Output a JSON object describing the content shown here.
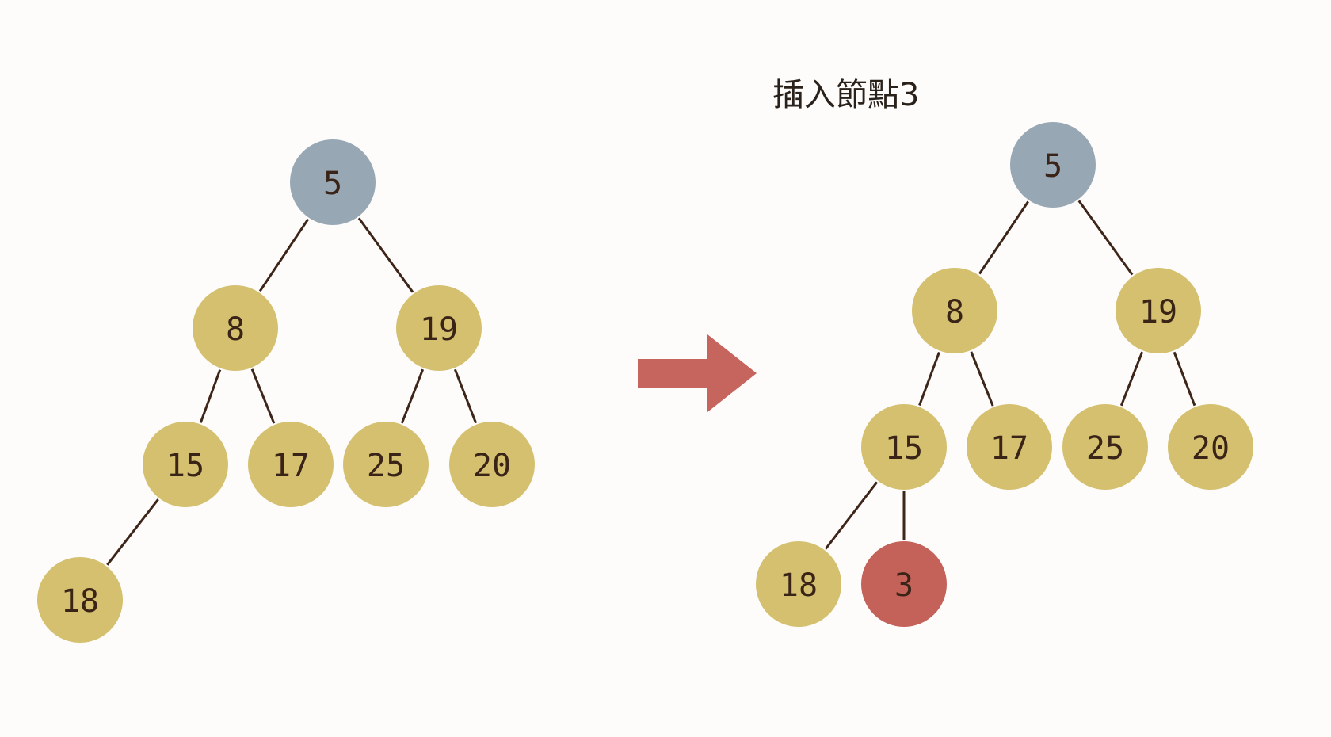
{
  "colors": {
    "node_default": "#d4c06f",
    "node_root": "#98a7b4",
    "node_inserted": "#c4625a",
    "edge": "#3d2519",
    "label": "#3a2418",
    "arrow": "#c5655d"
  },
  "before": {
    "nodes": [
      {
        "id": "b5",
        "label": "5",
        "role": "root"
      },
      {
        "id": "b8",
        "label": "8",
        "role": "default"
      },
      {
        "id": "b19",
        "label": "19",
        "role": "default"
      },
      {
        "id": "b15",
        "label": "15",
        "role": "default"
      },
      {
        "id": "b17",
        "label": "17",
        "role": "default"
      },
      {
        "id": "b25",
        "label": "25",
        "role": "default"
      },
      {
        "id": "b20",
        "label": "20",
        "role": "default"
      },
      {
        "id": "b18",
        "label": "18",
        "role": "default"
      }
    ],
    "edges": [
      [
        "b5",
        "b8"
      ],
      [
        "b5",
        "b19"
      ],
      [
        "b8",
        "b15"
      ],
      [
        "b8",
        "b17"
      ],
      [
        "b19",
        "b25"
      ],
      [
        "b19",
        "b20"
      ],
      [
        "b15",
        "b18"
      ]
    ]
  },
  "after": {
    "caption": "插入節點3",
    "nodes": [
      {
        "id": "a5",
        "label": "5",
        "role": "root"
      },
      {
        "id": "a8",
        "label": "8",
        "role": "default"
      },
      {
        "id": "a19",
        "label": "19",
        "role": "default"
      },
      {
        "id": "a15",
        "label": "15",
        "role": "default"
      },
      {
        "id": "a17",
        "label": "17",
        "role": "default"
      },
      {
        "id": "a25",
        "label": "25",
        "role": "default"
      },
      {
        "id": "a20",
        "label": "20",
        "role": "default"
      },
      {
        "id": "a18",
        "label": "18",
        "role": "default"
      },
      {
        "id": "a3",
        "label": "3",
        "role": "inserted"
      }
    ],
    "edges": [
      [
        "a5",
        "a8"
      ],
      [
        "a5",
        "a19"
      ],
      [
        "a8",
        "a15"
      ],
      [
        "a8",
        "a17"
      ],
      [
        "a19",
        "a25"
      ],
      [
        "a19",
        "a20"
      ],
      [
        "a15",
        "a18"
      ],
      [
        "a15",
        "a3"
      ]
    ]
  }
}
